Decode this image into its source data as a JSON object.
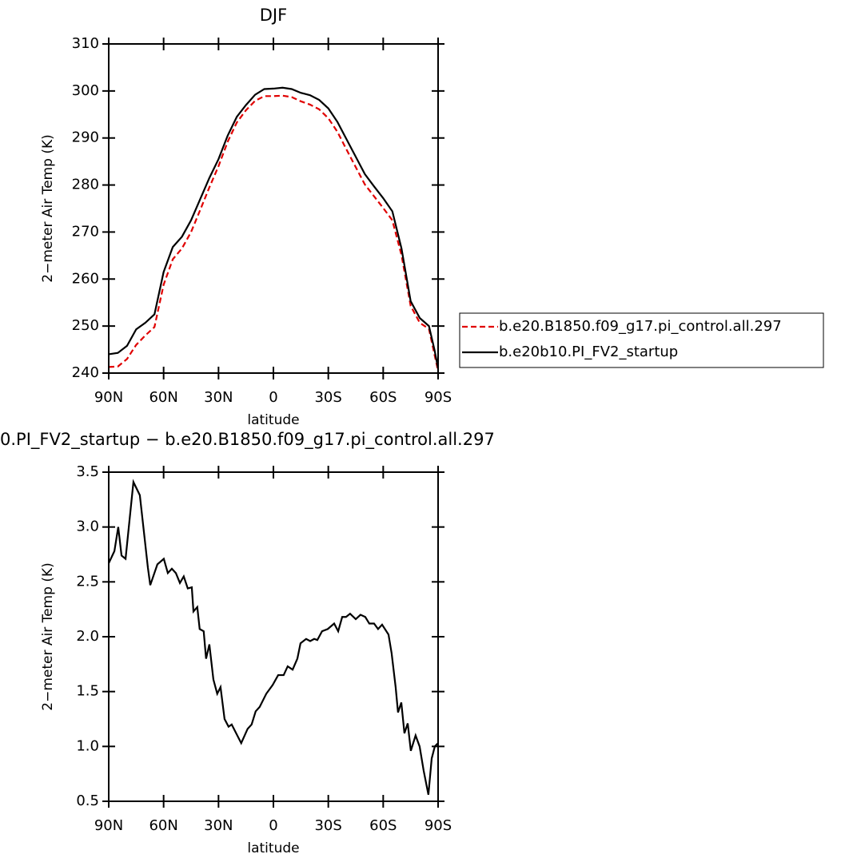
{
  "chart_data": [
    {
      "type": "line",
      "title": "DJF",
      "xlabel": "latitude",
      "ylabel": "2−meter Air Temp (K)",
      "x": [
        90,
        85,
        80,
        75,
        70,
        65,
        60,
        55,
        50,
        45,
        40,
        35,
        30,
        25,
        20,
        15,
        10,
        5,
        0,
        -5,
        -10,
        -15,
        -20,
        -25,
        -30,
        -35,
        -40,
        -45,
        -50,
        -55,
        -60,
        -65,
        -70,
        -75,
        -80,
        -85,
        -88,
        -90
      ],
      "series": [
        {
          "name": "b.e20.B1850.f09_g17.pi_control.all.297",
          "color": "#e00000",
          "line_style": "dashed",
          "values": [
            241.3,
            241.4,
            243,
            246,
            248,
            249.8,
            258.8,
            264.2,
            266.5,
            270,
            274.7,
            279.5,
            284,
            289.2,
            293.3,
            295.9,
            297.9,
            298.9,
            298.9,
            299,
            298.7,
            297.8,
            297.1,
            296.1,
            294.2,
            291.3,
            287.5,
            283.8,
            280.1,
            277.6,
            275.1,
            272.5,
            265.1,
            254.3,
            250.7,
            249.4,
            244,
            240.5
          ]
        },
        {
          "name": "b.e20b10.PI_FV2_startup",
          "color": "#000000",
          "line_style": "solid",
          "values": [
            244,
            244.3,
            245.8,
            249.3,
            250.7,
            252.5,
            261.5,
            266.8,
            269,
            272.5,
            277,
            281.5,
            285.5,
            290.5,
            294.5,
            297,
            299.2,
            300.4,
            300.5,
            300.7,
            300.4,
            299.6,
            299.1,
            298.1,
            296.3,
            293.4,
            289.7,
            286,
            282.3,
            279.7,
            277.2,
            274.4,
            266.5,
            255.3,
            251.7,
            250,
            245,
            241
          ]
        }
      ],
      "xlim": [
        90,
        -90
      ],
      "xticks": [
        {
          "value": 90,
          "label": "90N"
        },
        {
          "value": 60,
          "label": "60N"
        },
        {
          "value": 30,
          "label": "30N"
        },
        0,
        {
          "value": -30,
          "label": "30S"
        },
        {
          "value": -60,
          "label": "60S"
        },
        {
          "value": -90,
          "label": "90S"
        }
      ],
      "ylim": [
        240,
        310
      ],
      "yticks": [
        240,
        250,
        260,
        270,
        280,
        290,
        300,
        310
      ],
      "legend": "right"
    },
    {
      "type": "line",
      "title": "0.PI_FV2_startup − b.e20.B1850.f09_g17.pi_control.all.297",
      "xlabel": "latitude",
      "ylabel": "2−meter Air Temp (K)",
      "x": [
        90,
        86.9,
        84.8,
        83.0,
        80.8,
        76.5,
        73.0,
        68.6,
        67.3,
        63.4,
        59.9,
        57.7,
        55.5,
        53.3,
        51.1,
        49.0,
        46.8,
        44.6,
        43.7,
        41.6,
        40.3,
        38.1,
        36.8,
        35.0,
        32.8,
        30.7,
        28.9,
        26.7,
        24.5,
        22.8,
        17.6,
        14.1,
        11.9,
        9.7,
        7.5,
        3.9,
        0.4,
        -2.6,
        -5.6,
        -7.8,
        -10.5,
        -13.1,
        -14.8,
        -17.9,
        -20.1,
        -22.3,
        -24.0,
        -26.6,
        -29.7,
        -33.2,
        -35.4,
        -37.6,
        -39.7,
        -41.9,
        -45.0,
        -47.6,
        -50.2,
        -52.4,
        -55.0,
        -57.2,
        -59.4,
        -62.9,
        -64.6,
        -66.8,
        -68.1,
        -69.9,
        -71.6,
        -73.4,
        -75.1,
        -77.7,
        -79.9,
        -82.1,
        -84.7,
        -86.5,
        -88.2,
        -90
      ],
      "values": [
        2.67,
        2.78,
        3.0,
        2.74,
        2.71,
        3.41,
        3.29,
        2.63,
        2.47,
        2.66,
        2.71,
        2.58,
        2.62,
        2.58,
        2.49,
        2.55,
        2.44,
        2.45,
        2.23,
        2.27,
        2.07,
        2.05,
        1.8,
        1.93,
        1.61,
        1.48,
        1.54,
        1.25,
        1.18,
        1.2,
        1.03,
        1.16,
        1.2,
        1.32,
        1.36,
        1.48,
        1.56,
        1.65,
        1.65,
        1.73,
        1.7,
        1.8,
        1.94,
        1.98,
        1.96,
        1.98,
        1.97,
        2.05,
        2.07,
        2.12,
        2.05,
        2.18,
        2.18,
        2.21,
        2.16,
        2.2,
        2.18,
        2.12,
        2.12,
        2.07,
        2.11,
        2.02,
        1.85,
        1.54,
        1.31,
        1.4,
        1.12,
        1.21,
        0.96,
        1.1,
        1.0,
        0.78,
        0.56,
        0.89,
        1.0,
        1.03
      ],
      "color": "#000000",
      "line_style": "solid",
      "xlim": [
        90,
        -90
      ],
      "xticks": [
        {
          "value": 90,
          "label": "90N"
        },
        {
          "value": 60,
          "label": "60N"
        },
        {
          "value": 30,
          "label": "30N"
        },
        0,
        {
          "value": -30,
          "label": "30S"
        },
        {
          "value": -60,
          "label": "60S"
        },
        {
          "value": -90,
          "label": "90S"
        }
      ],
      "ylim": [
        0.5,
        3.5
      ],
      "yticks": [
        0.5,
        {
          "value": 1,
          "label": "1.0"
        },
        1.5,
        {
          "value": 2,
          "label": "2.0"
        },
        2.5,
        {
          "value": 3,
          "label": "3.0"
        },
        3.5
      ]
    }
  ]
}
